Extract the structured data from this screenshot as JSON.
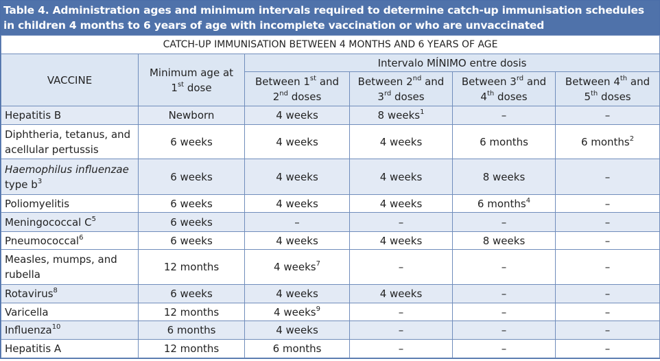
{
  "title": "Table 4. Administration ages and minimum intervals required to determine catch-up immunisation schedules in children 4 months to 6 years of age with incomplete vaccination or who are unvaccinated",
  "table": {
    "subtitle": "CATCH-UP IMMUNISATION BETWEEN 4 MONTHS AND 6 YEARS OF AGE",
    "header": {
      "vaccine": [
        "VACCINE"
      ],
      "min_age": [
        "Minimum age at 1",
        {
          "sup": "st"
        },
        " dose"
      ],
      "group": [
        "Intervalo MÍNIMO entre dosis"
      ],
      "intervals": [
        [
          "Between 1",
          {
            "sup": "st"
          },
          " and 2",
          {
            "sup": "nd"
          },
          " doses"
        ],
        [
          "Between 2",
          {
            "sup": "nd"
          },
          " and 3",
          {
            "sup": "rd"
          },
          " doses"
        ],
        [
          "Between 3",
          {
            "sup": "rd"
          },
          " and 4",
          {
            "sup": "th"
          },
          " doses"
        ],
        [
          "Between 4",
          {
            "sup": "th"
          },
          " and 5",
          {
            "sup": "th"
          },
          " doses"
        ]
      ]
    },
    "rows": [
      [
        [
          "Hepatitis B"
        ],
        [
          "Newborn"
        ],
        [
          "4 weeks"
        ],
        [
          "8 weeks",
          {
            "sup": "1"
          }
        ],
        [
          "–"
        ],
        [
          "–"
        ]
      ],
      [
        [
          "Diphtheria, tetanus, and acellular pertussis"
        ],
        [
          "6 weeks"
        ],
        [
          "4 weeks"
        ],
        [
          "4 weeks"
        ],
        [
          "6 months"
        ],
        [
          "6 months",
          {
            "sup": "2"
          }
        ]
      ],
      [
        [
          {
            "i": "Haemophilus influenzae"
          },
          " type b",
          {
            "sup": "3"
          }
        ],
        [
          "6 weeks"
        ],
        [
          "4 weeks"
        ],
        [
          "4 weeks"
        ],
        [
          "8 weeks"
        ],
        [
          "–"
        ]
      ],
      [
        [
          "Poliomyelitis"
        ],
        [
          "6 weeks"
        ],
        [
          "4 weeks"
        ],
        [
          "4 weeks"
        ],
        [
          "6 months",
          {
            "sup": "4"
          }
        ],
        [
          "–"
        ]
      ],
      [
        [
          "Meningococcal C",
          {
            "sup": "5"
          }
        ],
        [
          "6 weeks"
        ],
        [
          "–"
        ],
        [
          "–"
        ],
        [
          "–"
        ],
        [
          "–"
        ]
      ],
      [
        [
          "Pneumococcal",
          {
            "sup": "6"
          }
        ],
        [
          "6 weeks"
        ],
        [
          "4 weeks"
        ],
        [
          "4 weeks"
        ],
        [
          "8 weeks"
        ],
        [
          "–"
        ]
      ],
      [
        [
          "Measles, mumps, and rubella"
        ],
        [
          "12 months"
        ],
        [
          "4 weeks",
          {
            "sup": "7"
          }
        ],
        [
          "–"
        ],
        [
          "–"
        ],
        [
          "–"
        ]
      ],
      [
        [
          "Rotavirus",
          {
            "sup": "8"
          }
        ],
        [
          "6 weeks"
        ],
        [
          "4 weeks"
        ],
        [
          "4 weeks"
        ],
        [
          "–"
        ],
        [
          "–"
        ]
      ],
      [
        [
          "Varicella"
        ],
        [
          "12 months"
        ],
        [
          "4 weeks",
          {
            "sup": "9"
          }
        ],
        [
          "–"
        ],
        [
          "–"
        ],
        [
          "–"
        ]
      ],
      [
        [
          "Influenza",
          {
            "sup": "10"
          }
        ],
        [
          "6 months"
        ],
        [
          "4 weeks"
        ],
        [
          "–"
        ],
        [
          "–"
        ],
        [
          "–"
        ]
      ],
      [
        [
          "Hepatitis A"
        ],
        [
          "12 months"
        ],
        [
          "6 months"
        ],
        [
          "–"
        ],
        [
          "–"
        ],
        [
          "–"
        ]
      ]
    ]
  }
}
